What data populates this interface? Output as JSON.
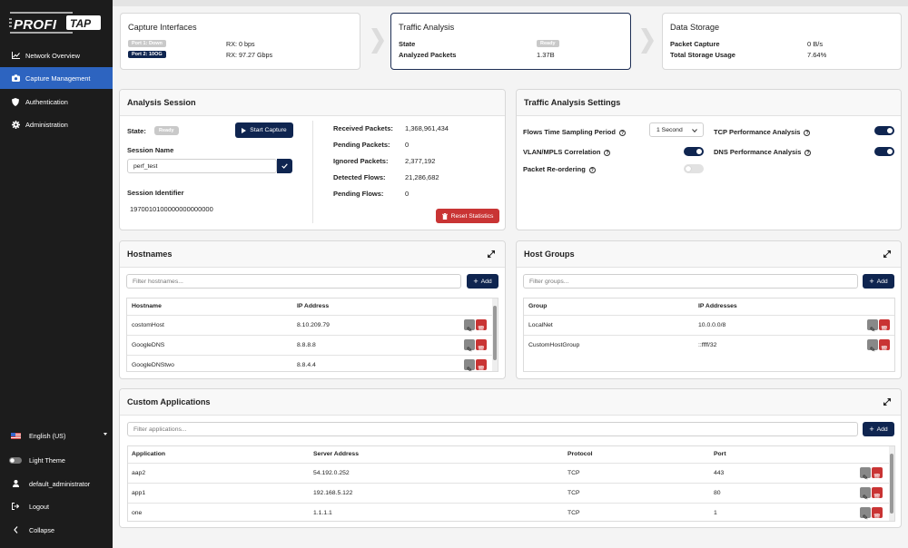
{
  "brand": {
    "name": "PROFITAP"
  },
  "sidebar": {
    "items": [
      {
        "label": "Network Overview",
        "icon": "chart-line-icon"
      },
      {
        "label": "Capture Management",
        "icon": "camera-icon",
        "active": true
      },
      {
        "label": "Authentication",
        "icon": "shield-icon"
      },
      {
        "label": "Administration",
        "icon": "gear-icon"
      }
    ],
    "language": "English (US)",
    "theme": "Light Theme",
    "user": "default_administrator",
    "logout": "Logout",
    "collapse": "Collapse"
  },
  "pipeline": {
    "capture": {
      "title": "Capture Interfaces",
      "ports": [
        {
          "badge": "Port 1: Down",
          "value": "RX: 0 bps"
        },
        {
          "badge": "Port 2: 10OG",
          "value": "RX: 97.27 Gbps"
        }
      ]
    },
    "traffic": {
      "title": "Traffic Analysis",
      "rows": [
        {
          "label": "State",
          "value": "Ready"
        },
        {
          "label": "Analyzed Packets",
          "value": "1.37B"
        }
      ]
    },
    "storage": {
      "title": "Data Storage",
      "rows": [
        {
          "label": "Packet Capture",
          "value": "0 B/s"
        },
        {
          "label": "Total Storage Usage",
          "value": "7.64%"
        }
      ]
    }
  },
  "session": {
    "title": "Analysis Session",
    "state_label": "State:",
    "state_value": "Ready",
    "start_button": "Start Capture",
    "name_label": "Session Name",
    "name_value": "perf_test",
    "id_label": "Session Identifier",
    "id_value": "1970010100000000000000",
    "stats": [
      {
        "label": "Received Packets:",
        "value": "1,368,961,434"
      },
      {
        "label": "Pending Packets:",
        "value": "0"
      },
      {
        "label": "Ignored Packets:",
        "value": "2,377,192"
      },
      {
        "label": "Detected Flows:",
        "value": "21,286,682"
      },
      {
        "label": "Pending Flows:",
        "value": "0"
      }
    ],
    "reset_button": "Reset Statistics"
  },
  "settings": {
    "title": "Traffic Analysis Settings",
    "sampling_label": "Flows Time Sampling Period",
    "sampling_value": "1 Second",
    "vlan_label": "VLAN/MPLS Correlation",
    "vlan_on": true,
    "reorder_label": "Packet Re-ordering",
    "reorder_on": false,
    "tcp_label": "TCP Performance Analysis",
    "tcp_on": true,
    "dns_label": "DNS Performance Analysis",
    "dns_on": true
  },
  "hostnames": {
    "title": "Hostnames",
    "filter_placeholder": "Filter hostnames...",
    "add_button": "Add",
    "columns": [
      "Hostname",
      "IP Address"
    ],
    "rows": [
      [
        "costomHost",
        "8.10.209.79"
      ],
      [
        "GoogleDNS",
        "8.8.8.8"
      ],
      [
        "GoogleDNStwo",
        "8.8.4.4"
      ]
    ]
  },
  "hostgroups": {
    "title": "Host Groups",
    "filter_placeholder": "Filter groups...",
    "add_button": "Add",
    "columns": [
      "Group",
      "IP Addresses"
    ],
    "rows": [
      [
        "LocalNet",
        "10.0.0.0/8"
      ],
      [
        "CustomHostGroup",
        "::ffff/32"
      ]
    ]
  },
  "apps": {
    "title": "Custom Applications",
    "filter_placeholder": "Filter applications...",
    "add_button": "Add",
    "columns": [
      "Application",
      "Server Address",
      "Protocol",
      "Port"
    ],
    "rows": [
      [
        "aap2",
        "54.192.0.252",
        "TCP",
        "443"
      ],
      [
        "app1",
        "192.168.5.122",
        "TCP",
        "80"
      ],
      [
        "one",
        "1.1.1.1",
        "TCP",
        "1"
      ]
    ]
  },
  "colors": {
    "accent": "#2d64c0",
    "navy": "#0f2550",
    "danger": "#c93434",
    "sidebar": "#1c1c1c"
  }
}
